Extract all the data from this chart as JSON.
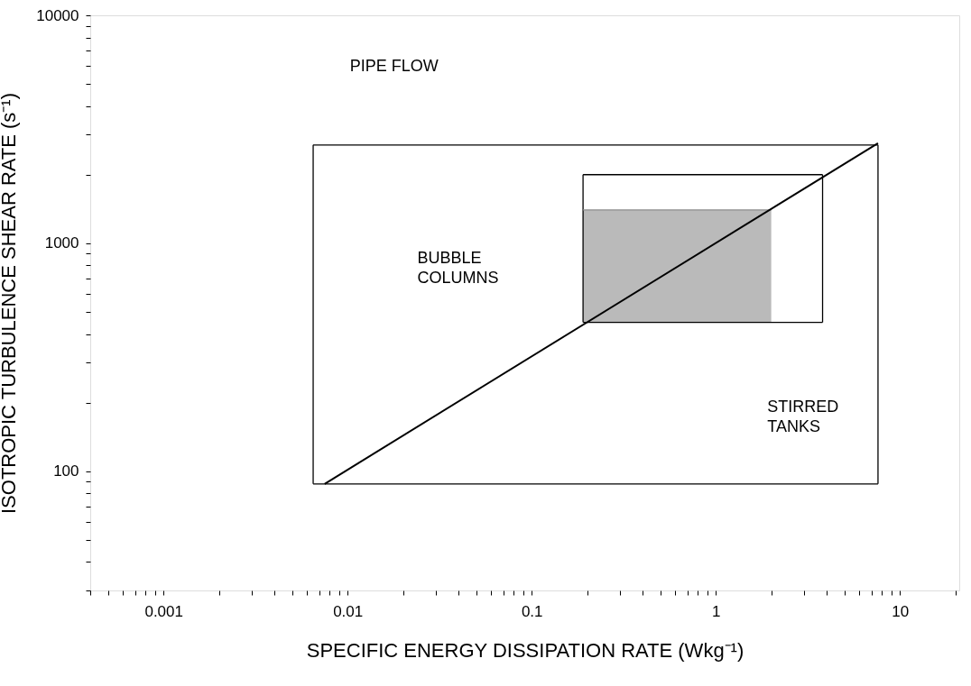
{
  "chart_data": {
    "type": "line",
    "xlabel": "SPECIFIC ENERGY DISSIPATION RATE (Wkg⁻¹)",
    "ylabel": "ISOTROPIC TURBULENCE SHEAR RATE (s⁻¹)",
    "log": "xy",
    "grid": false,
    "marker": "none",
    "line_style": "solid",
    "xlim": [
      0.0004,
      21
    ],
    "ylim": [
      30,
      10000
    ],
    "xticks": [
      {
        "value": 0.0004,
        "label": null
      },
      {
        "value": 0.0005,
        "label": null
      },
      {
        "value": 0.0006,
        "label": null
      },
      {
        "value": 0.0007,
        "label": null
      },
      {
        "value": 0.0008,
        "label": null
      },
      {
        "value": 0.0009,
        "label": null
      },
      0.001,
      {
        "value": 0.002,
        "label": null
      },
      {
        "value": 0.003,
        "label": null
      },
      {
        "value": 0.004,
        "label": null
      },
      {
        "value": 0.005,
        "label": null
      },
      {
        "value": 0.006,
        "label": null
      },
      {
        "value": 0.007,
        "label": null
      },
      {
        "value": 0.008,
        "label": null
      },
      {
        "value": 0.009,
        "label": null
      },
      0.01,
      {
        "value": 0.02,
        "label": null
      },
      {
        "value": 0.03,
        "label": null
      },
      {
        "value": 0.04,
        "label": null
      },
      {
        "value": 0.05,
        "label": null
      },
      {
        "value": 0.06,
        "label": null
      },
      {
        "value": 0.07,
        "label": null
      },
      {
        "value": 0.08,
        "label": null
      },
      {
        "value": 0.09,
        "label": null
      },
      0.1,
      {
        "value": 0.2,
        "label": null
      },
      {
        "value": 0.3,
        "label": null
      },
      {
        "value": 0.4,
        "label": null
      },
      {
        "value": 0.5,
        "label": null
      },
      {
        "value": 0.6,
        "label": null
      },
      {
        "value": 0.7,
        "label": null
      },
      {
        "value": 0.8,
        "label": null
      },
      {
        "value": 0.9,
        "label": null
      },
      1,
      {
        "value": 2,
        "label": null
      },
      {
        "value": 3,
        "label": null
      },
      {
        "value": 4,
        "label": null
      },
      {
        "value": 5,
        "label": null
      },
      {
        "value": 6,
        "label": null
      },
      {
        "value": 7,
        "label": null
      },
      {
        "value": 8,
        "label": null
      },
      {
        "value": 9,
        "label": null
      },
      10,
      {
        "value": 20,
        "label": null
      }
    ],
    "yticks": [
      {
        "value": 30,
        "label": null
      },
      {
        "value": 40,
        "label": null
      },
      {
        "value": 50,
        "label": null
      },
      {
        "value": 60,
        "label": null
      },
      {
        "value": 70,
        "label": null
      },
      {
        "value": 80,
        "label": null
      },
      {
        "value": 90,
        "label": null
      },
      100,
      {
        "value": 200,
        "label": null
      },
      {
        "value": 300,
        "label": null
      },
      {
        "value": 400,
        "label": null
      },
      {
        "value": 500,
        "label": null
      },
      {
        "value": 600,
        "label": null
      },
      {
        "value": 700,
        "label": null
      },
      {
        "value": 800,
        "label": null
      },
      {
        "value": 900,
        "label": null
      },
      1000,
      {
        "value": 2000,
        "label": null
      },
      {
        "value": 3000,
        "label": null
      },
      {
        "value": 4000,
        "label": null
      },
      {
        "value": 5000,
        "label": null
      },
      {
        "value": 6000,
        "label": null
      },
      {
        "value": 7000,
        "label": null
      },
      {
        "value": 8000,
        "label": null
      },
      {
        "value": 9000,
        "label": null
      },
      10000
    ],
    "series": [
      {
        "color": "#000000",
        "x": [
          0.0065,
          7.6
        ],
        "values": [
          2700,
          2700
        ]
      },
      {
        "color": "#000000",
        "x": [
          0.0065,
          7.6
        ],
        "values": [
          88,
          88
        ]
      },
      {
        "color": "#000000",
        "x": [
          0.0065,
          0.0065
        ],
        "values": [
          88,
          2700
        ]
      },
      {
        "color": "#000000",
        "x": [
          7.6,
          7.6
        ],
        "values": [
          88,
          2700
        ]
      },
      {
        "color": "#000000",
        "x": [
          0.19,
          3.8
        ],
        "values": [
          2000,
          2000
        ]
      },
      {
        "color": "#000000",
        "x": [
          0.19,
          3.8
        ],
        "values": [
          450,
          450
        ]
      },
      {
        "color": "#000000",
        "x": [
          0.19,
          0.19
        ],
        "values": [
          450,
          2000
        ]
      },
      {
        "color": "#000000",
        "x": [
          3.8,
          3.8
        ],
        "values": [
          450,
          2000
        ]
      },
      {
        "color": "#8c8c8c",
        "x": [
          0.19,
          2.0
        ],
        "values": [
          1400,
          1400
        ],
        "lower": [
          450,
          450
        ],
        "upper": [
          1400,
          1400
        ]
      },
      {
        "color": "#000000",
        "x": [
          0.0075,
          7.6
        ],
        "values": [
          88,
          2750
        ]
      }
    ],
    "annotations": [
      "PIPE FLOW",
      "BUBBLE\nCOLUMNS",
      "STIRRED\nTANKS"
    ]
  }
}
